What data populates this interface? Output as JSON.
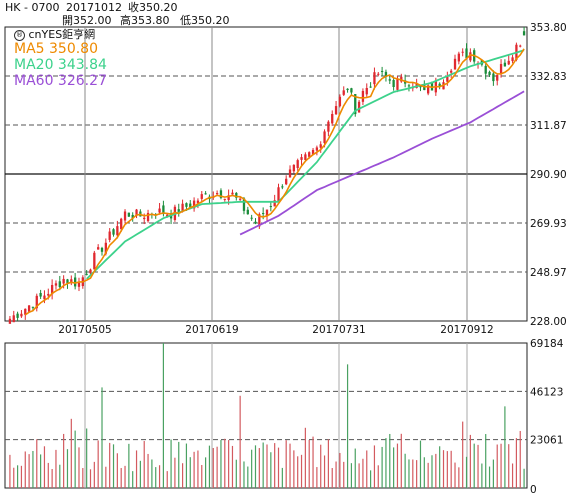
{
  "header": {
    "ticker": "HK - 0700",
    "date": "20171012",
    "close_label": "收350.20",
    "open_label": "開352.00",
    "high_label": "高353.80",
    "low_label": "低350.20"
  },
  "brand": {
    "text": "cnYES鉅亨網",
    "icon": "registered-circle-icon"
  },
  "colors": {
    "up": "#e0282f",
    "down": "#1a8c3a",
    "ma5": "#ee8a00",
    "ma20": "#3dd28c",
    "ma60": "#9a4fd6",
    "vol_up": "#d35a5f",
    "vol_down": "#4aa162"
  },
  "chart_data": [
    {
      "type": "candlestick",
      "title": "",
      "ylim": [
        228.0,
        353.8
      ],
      "yticks": [
        "353.80",
        "332.83",
        "311.87",
        "290.90",
        "269.93",
        "248.97",
        "228.00"
      ],
      "xticks": [
        "20170505",
        "20170619",
        "20170731",
        "20170912"
      ],
      "legend": [
        {
          "label": "MA5 350.80",
          "color": "#ee8a00"
        },
        {
          "label": "MA20 343.84",
          "color": "#3dd28c"
        },
        {
          "label": "MA60 326.27",
          "color": "#9a4fd6"
        }
      ],
      "ohlc_sample": {
        "last": {
          "date": "20171012",
          "open": 352.0,
          "high": 353.8,
          "low": 350.2,
          "close": 350.2
        }
      },
      "close_anchors": [
        [
          0,
          229.0
        ],
        [
          8,
          238.0
        ],
        [
          14,
          246.0
        ],
        [
          18,
          244.0
        ],
        [
          22,
          255.0
        ],
        [
          26,
          264.0
        ],
        [
          30,
          274.0
        ],
        [
          34,
          273.0
        ],
        [
          38,
          275.0
        ],
        [
          42,
          274.0
        ],
        [
          46,
          277.0
        ],
        [
          50,
          281.0
        ],
        [
          54,
          283.0
        ],
        [
          58,
          282.0
        ],
        [
          62,
          274.0
        ],
        [
          64,
          270.0
        ],
        [
          68,
          278.0
        ],
        [
          72,
          290.0
        ],
        [
          76,
          296.0
        ],
        [
          80,
          302.0
        ],
        [
          84,
          318.0
        ],
        [
          88,
          328.0
        ],
        [
          90,
          319.0
        ],
        [
          92,
          326.0
        ],
        [
          96,
          334.0
        ],
        [
          100,
          330.0
        ],
        [
          104,
          331.0
        ],
        [
          108,
          326.0
        ],
        [
          112,
          330.0
        ],
        [
          116,
          340.0
        ],
        [
          120,
          343.0
        ],
        [
          124,
          336.0
        ],
        [
          126,
          332.0
        ],
        [
          130,
          341.0
        ],
        [
          134,
          350.2
        ]
      ],
      "ma20_anchors": [
        [
          20,
          246.0
        ],
        [
          30,
          262.0
        ],
        [
          40,
          272.0
        ],
        [
          50,
          278.0
        ],
        [
          60,
          279.0
        ],
        [
          70,
          279.0
        ],
        [
          80,
          296.0
        ],
        [
          90,
          318.0
        ],
        [
          100,
          326.0
        ],
        [
          110,
          330.0
        ],
        [
          120,
          337.0
        ],
        [
          134,
          343.84
        ]
      ],
      "ma60_anchors": [
        [
          60,
          265.0
        ],
        [
          70,
          273.0
        ],
        [
          80,
          284.0
        ],
        [
          90,
          291.0
        ],
        [
          100,
          298.0
        ],
        [
          110,
          306.0
        ],
        [
          120,
          313.0
        ],
        [
          134,
          326.27
        ]
      ]
    },
    {
      "type": "bar",
      "title": "",
      "ylim": [
        0,
        69184
      ],
      "yticks": [
        "69184",
        "46123",
        "23061",
        "0"
      ],
      "peaks": [
        {
          "index": 24,
          "value": 48000
        },
        {
          "index": 40,
          "value": 69184
        },
        {
          "index": 88,
          "value": 59000
        },
        {
          "index": 60,
          "value": 44000
        }
      ]
    }
  ]
}
